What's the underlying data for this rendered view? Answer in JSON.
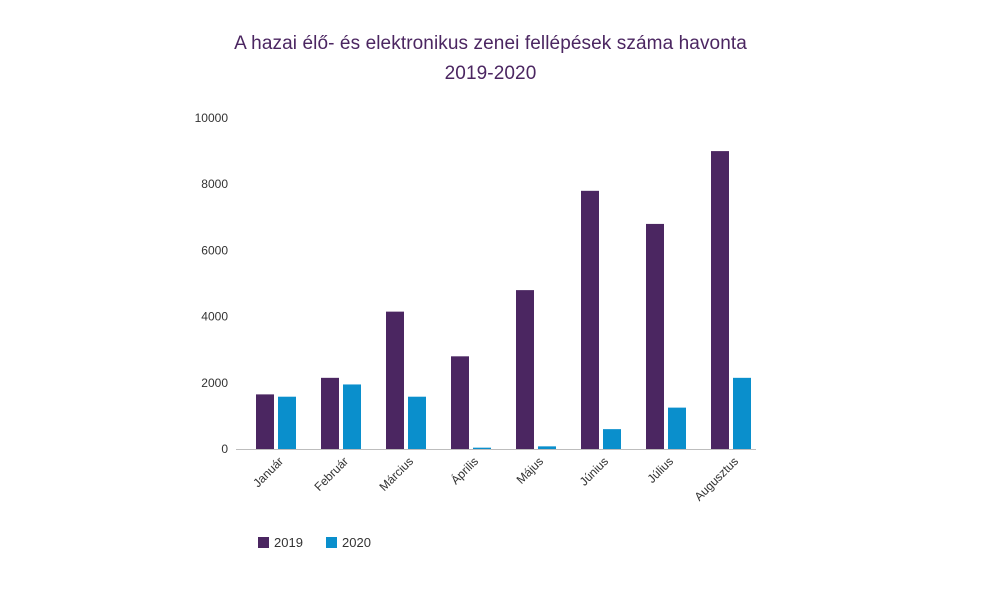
{
  "chart_data": {
    "type": "bar",
    "title": "A hazai élő- és elektronikus zenei fellépések száma havonta",
    "subtitle": "2019-2020",
    "xlabel": "",
    "ylabel": "",
    "ylim": [
      0,
      10000
    ],
    "yticks": [
      0,
      2000,
      4000,
      6000,
      8000,
      10000
    ],
    "grid": false,
    "legend_position": "bottom-left",
    "categories": [
      "Január",
      "Február",
      "Március",
      "Április",
      "Május",
      "Június",
      "Július",
      "Augusztus"
    ],
    "series": [
      {
        "name": "2019",
        "color": "#4b2661",
        "values": [
          1650,
          2150,
          4150,
          2800,
          4800,
          7800,
          6800,
          9000
        ]
      },
      {
        "name": "2020",
        "color": "#0a8fcc",
        "values": [
          1580,
          1950,
          1580,
          40,
          80,
          600,
          1250,
          2150
        ]
      }
    ]
  }
}
